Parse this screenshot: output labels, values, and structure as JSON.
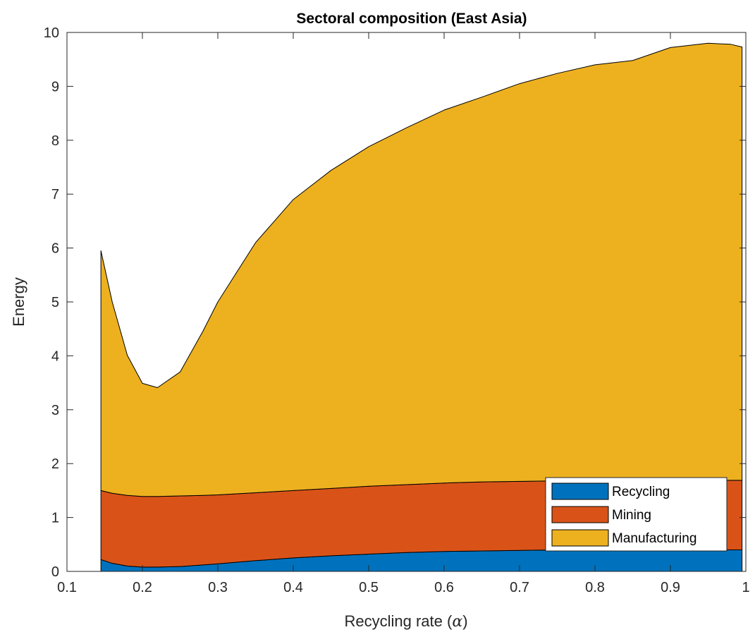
{
  "chart_data": {
    "type": "area",
    "stacked": true,
    "title": "Sectoral composition (East Asia)",
    "xlabel_text": "Recycling rate (",
    "xlabel_symbol": "α",
    "xlabel_close": ")",
    "ylabel": "Energy",
    "xlim": [
      0.1,
      1
    ],
    "ylim": [
      0,
      10
    ],
    "xticks": [
      "0.1",
      "0.2",
      "0.3",
      "0.4",
      "0.5",
      "0.6",
      "0.7",
      "0.8",
      "0.9",
      "1"
    ],
    "yticks": [
      "0",
      "1",
      "2",
      "3",
      "4",
      "5",
      "6",
      "7",
      "8",
      "9",
      "10"
    ],
    "legend_position": "bottom-right",
    "x": [
      0.145,
      0.16,
      0.18,
      0.2,
      0.22,
      0.25,
      0.28,
      0.3,
      0.35,
      0.4,
      0.45,
      0.5,
      0.55,
      0.6,
      0.65,
      0.7,
      0.75,
      0.8,
      0.85,
      0.9,
      0.95,
      0.98,
      0.995
    ],
    "series": [
      {
        "name": "Recycling",
        "color": "#0072BD",
        "values": [
          0.22,
          0.15,
          0.1,
          0.08,
          0.08,
          0.09,
          0.12,
          0.14,
          0.2,
          0.25,
          0.29,
          0.32,
          0.35,
          0.37,
          0.38,
          0.39,
          0.4,
          0.4,
          0.4,
          0.4,
          0.4,
          0.4,
          0.4
        ]
      },
      {
        "name": "Mining",
        "color": "#D95319",
        "values": [
          1.28,
          1.3,
          1.31,
          1.31,
          1.31,
          1.31,
          1.29,
          1.28,
          1.26,
          1.25,
          1.25,
          1.26,
          1.26,
          1.27,
          1.28,
          1.28,
          1.28,
          1.29,
          1.29,
          1.29,
          1.29,
          1.29,
          1.29
        ]
      },
      {
        "name": "Manufacturing",
        "color": "#EDB120",
        "values": [
          4.45,
          3.55,
          2.6,
          2.1,
          2.02,
          2.3,
          3.04,
          3.58,
          4.64,
          5.4,
          5.9,
          6.3,
          6.62,
          6.92,
          7.14,
          7.38,
          7.56,
          7.71,
          7.79,
          8.03,
          8.11,
          8.09,
          8.04
        ]
      }
    ]
  }
}
